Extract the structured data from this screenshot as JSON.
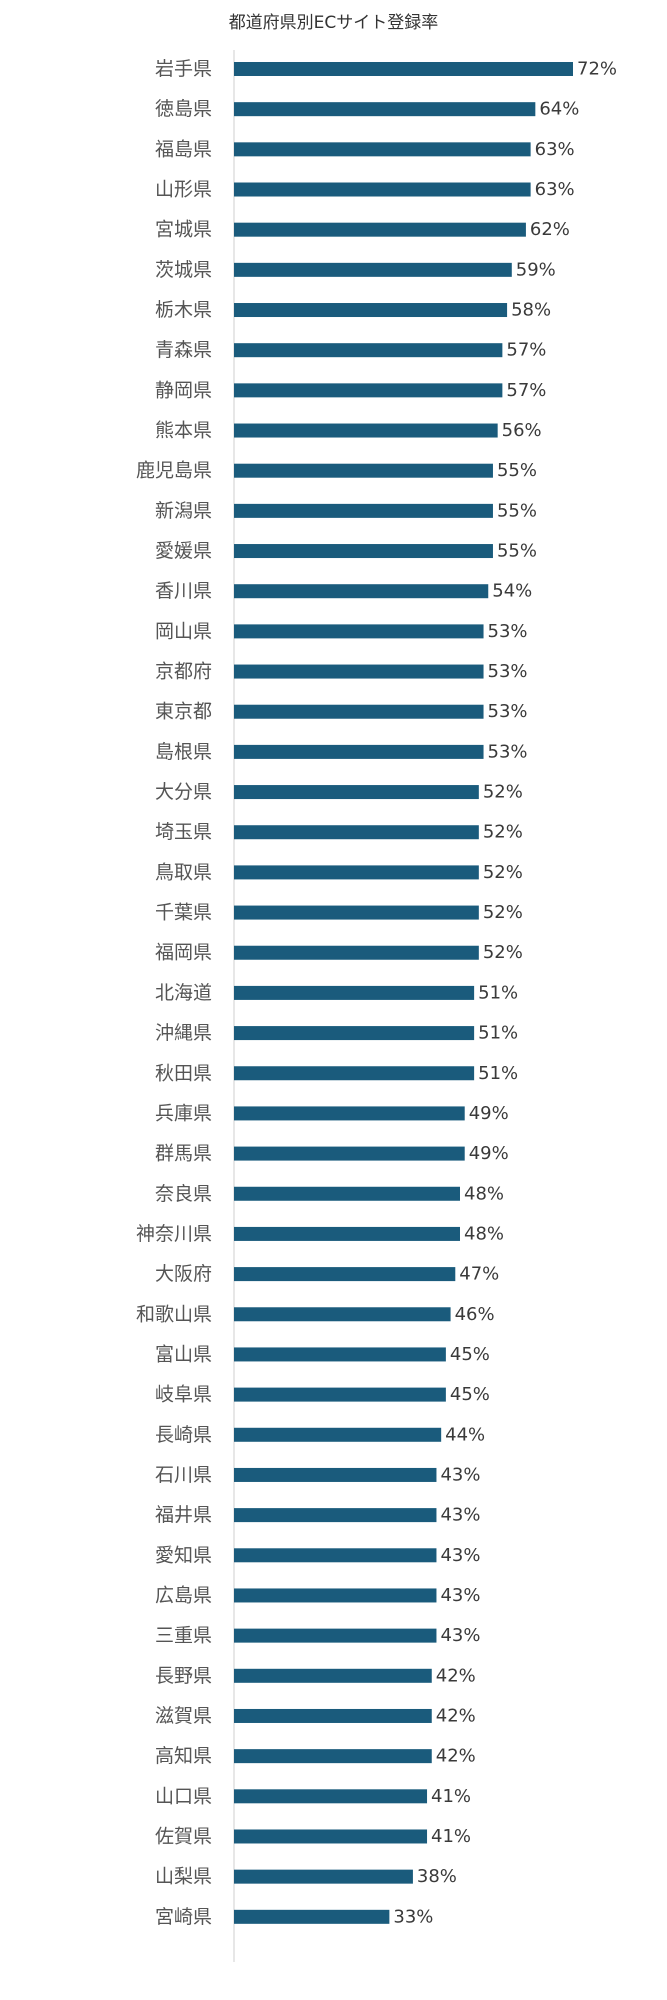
{
  "chart_data": {
    "type": "bar",
    "orientation": "horizontal",
    "title": "都道府県別ECサイト登録率",
    "xlabel": "",
    "ylabel": "",
    "unit": "%",
    "grid": false,
    "legend": "none",
    "bar_color": "#1a5b7c",
    "axis_color": "#cfcfcf",
    "xlim": [
      0,
      72
    ],
    "categories": [
      "岩手県",
      "徳島県",
      "福島県",
      "山形県",
      "宮城県",
      "茨城県",
      "栃木県",
      "青森県",
      "静岡県",
      "熊本県",
      "鹿児島県",
      "新潟県",
      "愛媛県",
      "香川県",
      "岡山県",
      "京都府",
      "東京都",
      "島根県",
      "大分県",
      "埼玉県",
      "鳥取県",
      "千葉県",
      "福岡県",
      "北海道",
      "沖縄県",
      "秋田県",
      "兵庫県",
      "群馬県",
      "奈良県",
      "神奈川県",
      "大阪府",
      "和歌山県",
      "富山県",
      "岐阜県",
      "長崎県",
      "石川県",
      "福井県",
      "愛知県",
      "広島県",
      "三重県",
      "長野県",
      "滋賀県",
      "高知県",
      "山口県",
      "佐賀県",
      "山梨県",
      "宮崎県"
    ],
    "values": [
      72,
      64,
      63,
      63,
      62,
      59,
      58,
      57,
      57,
      56,
      55,
      55,
      55,
      54,
      53,
      53,
      53,
      53,
      52,
      52,
      52,
      52,
      52,
      51,
      51,
      51,
      49,
      49,
      48,
      48,
      47,
      46,
      45,
      45,
      44,
      43,
      43,
      43,
      43,
      43,
      42,
      42,
      42,
      41,
      41,
      38,
      33
    ],
    "value_labels": [
      "72%",
      "64%",
      "63%",
      "63%",
      "62%",
      "59%",
      "58%",
      "57%",
      "57%",
      "56%",
      "55%",
      "55%",
      "55%",
      "54%",
      "53%",
      "53%",
      "53%",
      "53%",
      "52%",
      "52%",
      "52%",
      "52%",
      "52%",
      "51%",
      "51%",
      "51%",
      "49%",
      "49%",
      "48%",
      "48%",
      "47%",
      "46%",
      "45%",
      "45%",
      "44%",
      "43%",
      "43%",
      "43%",
      "43%",
      "43%",
      "42%",
      "42%",
      "42%",
      "41%",
      "41%",
      "38%",
      "33%"
    ]
  }
}
